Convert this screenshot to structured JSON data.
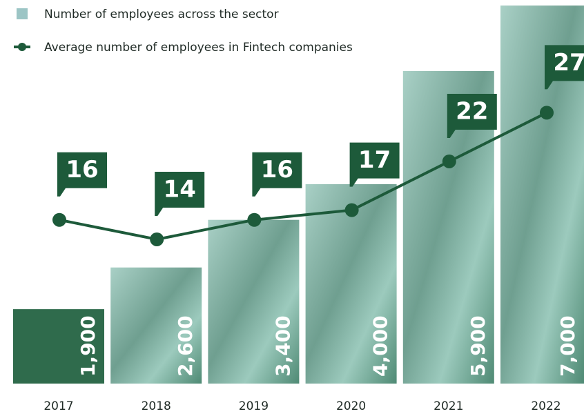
{
  "chart_data": {
    "type": "bar-line",
    "categories": [
      "2017",
      "2018",
      "2019",
      "2020",
      "2021",
      "2022"
    ],
    "series": [
      {
        "name": "Number of employees across the sector",
        "type": "bar",
        "color": "#8fbfb4",
        "values": [
          1900,
          2600,
          3400,
          4000,
          5900,
          7000
        ],
        "value_labels": [
          "1,900",
          "2,600",
          "3,400",
          "4,000",
          "5,900",
          "7,000"
        ]
      },
      {
        "name": "Average number of employees in Fintech companies",
        "type": "line",
        "color": "#1d5a3a",
        "axis": "y2",
        "values": [
          16,
          14,
          16,
          17,
          22,
          27
        ]
      }
    ],
    "ylim": [
      650,
      7000
    ],
    "y2lim": [
      -0.8,
      38
    ]
  }
}
